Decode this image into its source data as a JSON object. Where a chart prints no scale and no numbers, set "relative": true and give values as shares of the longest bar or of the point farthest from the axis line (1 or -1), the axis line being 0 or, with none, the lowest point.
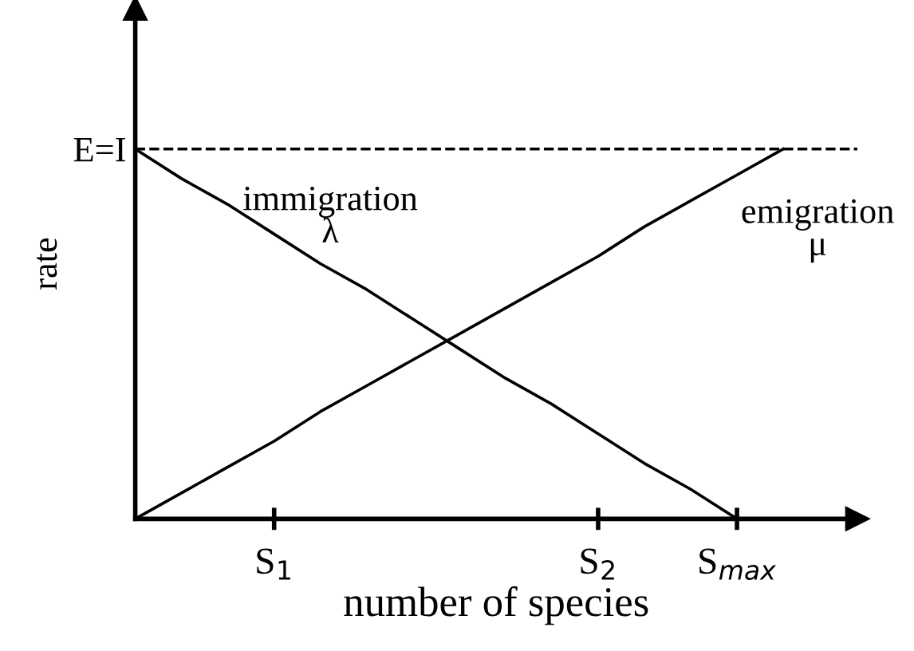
{
  "chart_data": {
    "type": "line",
    "relative": true,
    "xlabel": "number of species",
    "ylabel": "rate",
    "categories": [
      null,
      null,
      null,
      "S$_{1}$",
      null,
      null,
      null,
      null,
      null,
      null,
      "S$_{2}$",
      null,
      null,
      "S$_{max}$",
      null,
      null
    ],
    "series": [
      {
        "color": "#000000",
        "values": [
          1,
          0.92,
          0.85,
          0.77,
          0.69,
          0.62,
          0.54,
          0.46,
          0.38,
          0.31,
          0.23,
          0.15,
          0.08,
          0,
          null,
          null
        ]
      },
      {
        "color": "#000000",
        "values": [
          0,
          0.07,
          0.14,
          0.21,
          0.29,
          0.36,
          0.43,
          0.5,
          0.57,
          0.64,
          0.71,
          0.79,
          0.86,
          0.93,
          1,
          null
        ]
      }
    ],
    "ref_lines": [
      {
        "axis": "y",
        "value": 1,
        "label": "E=I",
        "color": "#000000",
        "line_style": "dashed"
      }
    ],
    "annotations": [
      "immigration\nλ",
      "emigration\nμ"
    ],
    "line_style": "solid",
    "marker": "none",
    "grid": false
  }
}
